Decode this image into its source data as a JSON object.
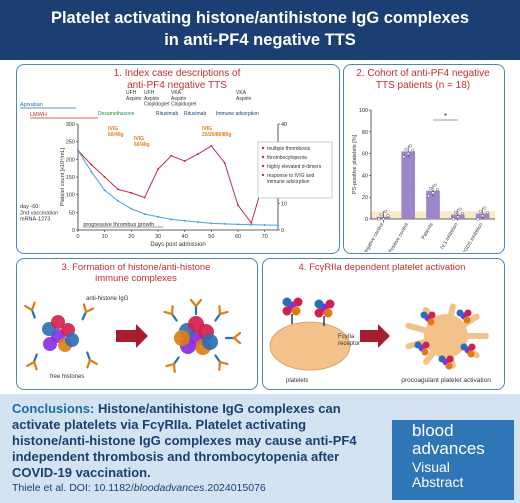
{
  "header": {
    "title_line1": "Platelet activating histone/antihistone IgG complexes",
    "title_line2": "in anti-PF4 negative TTS"
  },
  "panel1": {
    "title_line1": "1. Index case descriptions of",
    "title_line2": "anti-PF4 negative TTS",
    "drugs": {
      "apixaban": "Apixaban",
      "lmwh": "LMWH",
      "ufh_aspirin_1": "UFH\nAspirin",
      "ufh_aspirin_clop": "UFH\nAspirin\nClopidogrel",
      "vka_aspirin_clop": "VKA\nAspirin\nClopidogrel",
      "vka_aspirin": "VKA\nAspirin",
      "dexamethasone": "Dexamethasone",
      "rituximab1": "Rituximab",
      "rituximab2": "Rituximab",
      "immune_adsorption": "Immune adsorption"
    },
    "ivig": [
      "IVIG\n60/40g",
      "IVIG\n60/40g",
      "IVIG\n20/20/80/80g"
    ],
    "y_label_left": "Platelet count [x10⁹/mL]",
    "y_label_right": "D-dimer",
    "x_label": "Days post admission",
    "progressive_label": "progressive thrombus growth",
    "vaccination_note": "day -60:\n2nd vaccination\nmRNA-1273",
    "legend": [
      "multiple thrombosis",
      "thrombocytopenia",
      "highly elevated d-dimers",
      "response to IVIG and\nimmune adsorption"
    ]
  },
  "panel2": {
    "title_line1": "2. Cohort of anti-PF4 negative",
    "title_line2": "TTS patients (n = 18)",
    "asterisk": "*"
  },
  "panel3": {
    "title": "3. Formation of histone/anti-histone\nimmune complexes",
    "anti_histone_label": "anti-histone IgG",
    "free_histones_label": "free histones"
  },
  "panel4": {
    "title": "4. FcγRIIa dependent platelet activation",
    "receptor_label": "FcγIIa\nreceptor",
    "platelets_label": "platelets",
    "activation_label": "procoagulant platelet activation"
  },
  "footer": {
    "conclusions_label": "Conclusions:",
    "conclusions_text": "Histone/antihistone IgG complexes can activate platelets via FcγRIIa. Platelet activating histone/anti-histone IgG complexes may cause anti-PF4 independent thrombosis and thrombocytopenia after COVID-19 vaccination.",
    "citation_prefix": "Thiele et al. DOI: 10.1182/",
    "citation_journal": "bloodadvances",
    "citation_suffix": ".2024015076",
    "logo_line1": "blood",
    "logo_line2": "advances",
    "logo_line3": "Visual",
    "logo_line4": "Abstract"
  },
  "chart_data": [
    {
      "type": "line",
      "x": [
        0,
        5,
        10,
        15,
        20,
        25,
        30,
        35,
        40,
        45,
        50,
        55,
        60,
        65,
        70,
        75
      ],
      "xlim": [
        0,
        75
      ],
      "xticks": [
        0,
        10,
        20,
        30,
        40,
        50,
        60,
        70
      ],
      "left_yticks": [
        0,
        50,
        100,
        150,
        200,
        250,
        300
      ],
      "right_yticks": [
        0,
        10,
        20,
        30,
        40
      ],
      "xlabel": "Days post admission",
      "ylabel": "Platelet count [x10⁹/mL]",
      "y2label": "D-dimer",
      "series": [
        {
          "values": [
            225,
            185,
            150,
            115,
            105,
            92,
            172,
            210,
            195,
            215,
            238,
            190,
            70,
            20,
            148,
            230
          ]
        },
        {
          "values": [
            30,
            22,
            15,
            11,
            8,
            6,
            5,
            4,
            3.5,
            3,
            2.5,
            2.3,
            2.1,
            2,
            1.9,
            1.8
          ]
        }
      ]
    },
    {
      "type": "bar",
      "categories": [
        "Negative control",
        "Positive control",
        "Patients",
        "IV.3 inhibition",
        "RGDS inhibition"
      ],
      "values": [
        2,
        62,
        26,
        4,
        5
      ],
      "ylabel": "PS-positive platelets [%]",
      "ylim": [
        0,
        100
      ],
      "yticks": [
        0,
        20,
        40,
        60,
        80,
        100
      ]
    }
  ]
}
